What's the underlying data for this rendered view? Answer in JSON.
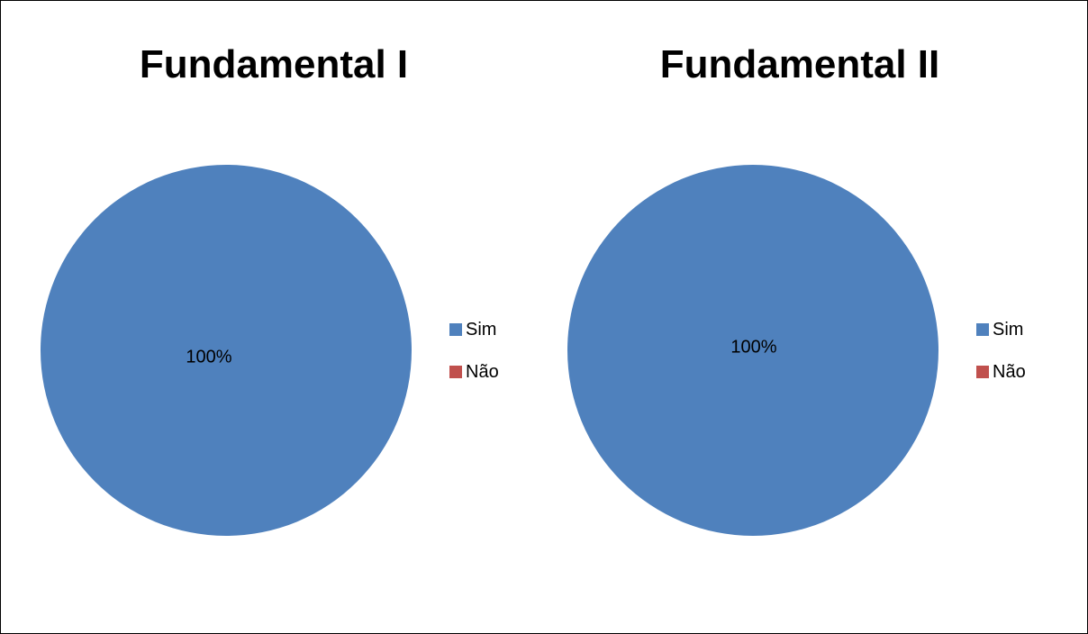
{
  "chart_data": [
    {
      "type": "pie",
      "title": "Fundamental I",
      "categories": [
        "Sim",
        "Não"
      ],
      "values": [
        100,
        0
      ],
      "data_labels": [
        "100%"
      ],
      "colors": [
        "#4F81BD",
        "#C0504D"
      ],
      "legend": "right"
    },
    {
      "type": "pie",
      "title": "Fundamental II",
      "categories": [
        "Sim",
        "Não"
      ],
      "values": [
        100,
        0
      ],
      "data_labels": [
        "100%"
      ],
      "colors": [
        "#4F81BD",
        "#C0504D"
      ],
      "legend": "right"
    }
  ]
}
